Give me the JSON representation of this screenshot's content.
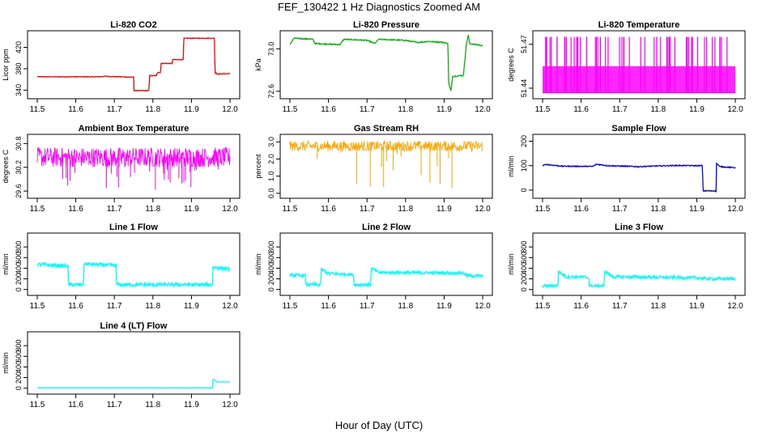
{
  "figure": {
    "title": "FEF_130422  1 Hz Diagnostics Zoomed AM",
    "xlabel": "Hour of Day (UTC)"
  },
  "chart_data": [
    {
      "type": "line",
      "title": "Li-820 CO2",
      "ylabel": "Licor ppm",
      "color": "#ff0000",
      "xlim": [
        11.5,
        12.0
      ],
      "ylim": [
        330,
        445
      ],
      "xticks": [
        11.5,
        11.6,
        11.7,
        11.8,
        11.9,
        12.0
      ],
      "yticks": [
        340,
        380,
        420
      ],
      "noise": 0.6,
      "points": [
        [
          11.5,
          365
        ],
        [
          11.66,
          365
        ],
        [
          11.675,
          366
        ],
        [
          11.75,
          364
        ],
        [
          11.751,
          339
        ],
        [
          11.79,
          339
        ],
        [
          11.791,
          367
        ],
        [
          11.81,
          367
        ],
        [
          11.811,
          373
        ],
        [
          11.82,
          373
        ],
        [
          11.821,
          390
        ],
        [
          11.85,
          390
        ],
        [
          11.851,
          397
        ],
        [
          11.879,
          397
        ],
        [
          11.88,
          437
        ],
        [
          11.96,
          437
        ],
        [
          11.961,
          372
        ],
        [
          11.964,
          374
        ],
        [
          11.965,
          370
        ],
        [
          12.0,
          371
        ]
      ]
    },
    {
      "type": "line",
      "title": "Li-820 Pressure",
      "ylabel": "kPa",
      "color": "#00b800",
      "xlim": [
        11.5,
        12.0
      ],
      "ylim": [
        72.56,
        73.14
      ],
      "xticks": [
        11.5,
        11.6,
        11.7,
        11.8,
        11.9,
        12.0
      ],
      "yticks": [
        72.6,
        73.0
      ],
      "yticklabels": [
        "72.6",
        "73.0"
      ],
      "noise": 0.005,
      "points": [
        [
          11.5,
          73.04
        ],
        [
          11.51,
          73.1
        ],
        [
          11.56,
          73.09
        ],
        [
          11.565,
          73.05
        ],
        [
          11.63,
          73.04
        ],
        [
          11.64,
          73.09
        ],
        [
          11.7,
          73.08
        ],
        [
          11.72,
          73.05
        ],
        [
          11.73,
          73.09
        ],
        [
          11.8,
          73.08
        ],
        [
          11.83,
          73.06
        ],
        [
          11.86,
          73.07
        ],
        [
          11.9,
          73.06
        ],
        [
          11.91,
          73.05
        ],
        [
          11.912,
          72.67
        ],
        [
          11.918,
          72.6
        ],
        [
          11.922,
          72.74
        ],
        [
          11.95,
          72.75
        ],
        [
          11.958,
          73.05
        ],
        [
          11.963,
          73.13
        ],
        [
          11.966,
          73.05
        ],
        [
          12.0,
          73.03
        ]
      ]
    },
    {
      "type": "step_noise",
      "title": "Li-820 Temperature",
      "ylabel": "degrees C",
      "color": "#ff00ff",
      "xlim": [
        11.5,
        12.0
      ],
      "ylim": [
        51.435,
        51.477
      ],
      "xticks": [
        11.5,
        11.6,
        11.7,
        11.8,
        11.9,
        12.0
      ],
      "yticks": [
        51.44,
        51.47
      ],
      "yticklabels": [
        "51.44",
        "51.47"
      ],
      "levels": [
        51.437,
        51.455,
        51.475
      ],
      "band": [
        51.437,
        51.455
      ],
      "spikes": 55
    },
    {
      "type": "noise",
      "title": "Ambient Box Temperature",
      "ylabel": "degrees C",
      "color": "#ff00ff",
      "xlim": [
        11.5,
        12.0
      ],
      "ylim": [
        29.5,
        30.95
      ],
      "xticks": [
        11.5,
        11.6,
        11.7,
        11.8,
        11.9,
        12.0
      ],
      "yticks": [
        29.6,
        30.2,
        30.8
      ],
      "yticklabels": [
        "29.6",
        "30.2",
        "30.8"
      ],
      "base": 30.45,
      "amp": 0.25,
      "spike_down": 29.6,
      "spikes": 45
    },
    {
      "type": "noise",
      "title": "Gas Stream RH",
      "ylabel": "percent",
      "color": "#ffa500",
      "xlim": [
        11.5,
        12.0
      ],
      "ylim": [
        -0.1,
        3.25
      ],
      "xticks": [
        11.5,
        11.6,
        11.7,
        11.8,
        11.9,
        12.0
      ],
      "yticks": [
        0.0,
        1.0,
        2.0,
        3.0
      ],
      "yticklabels": [
        "0.0",
        "1.0",
        "2.0",
        "3.0"
      ],
      "base": 2.75,
      "amp": 0.3,
      "spike_down": 0.1,
      "spikes": 18
    },
    {
      "type": "line",
      "title": "Sample Flow",
      "ylabel": "ml/min",
      "color": "#0000ff",
      "xlim": [
        11.5,
        12.0
      ],
      "ylim": [
        -20,
        215
      ],
      "xticks": [
        11.5,
        11.6,
        11.7,
        11.8,
        11.9,
        12.0
      ],
      "yticks": [
        0,
        100,
        200
      ],
      "noise": 2,
      "points": [
        [
          11.5,
          100
        ],
        [
          11.51,
          105
        ],
        [
          11.55,
          98
        ],
        [
          11.63,
          97
        ],
        [
          11.64,
          106
        ],
        [
          11.67,
          100
        ],
        [
          11.75,
          96
        ],
        [
          11.8,
          99
        ],
        [
          11.85,
          101
        ],
        [
          11.9,
          100
        ],
        [
          11.915,
          100
        ],
        [
          11.916,
          -3
        ],
        [
          11.95,
          -3
        ],
        [
          11.951,
          110
        ],
        [
          11.96,
          96
        ],
        [
          12.0,
          92
        ]
      ]
    },
    {
      "type": "line",
      "title": "Line 1 Flow",
      "ylabel": "ml/min",
      "color": "#00ffff",
      "xlim": [
        11.5,
        12.0
      ],
      "ylim": [
        -50,
        1000
      ],
      "xticks": [
        11.5,
        11.6,
        11.7,
        11.8,
        11.9,
        12.0
      ],
      "yticks": [
        0,
        200,
        400,
        600,
        800
      ],
      "noise": 35,
      "points": [
        [
          11.5,
          470
        ],
        [
          11.58,
          440
        ],
        [
          11.581,
          90
        ],
        [
          11.62,
          90
        ],
        [
          11.621,
          480
        ],
        [
          11.705,
          450
        ],
        [
          11.706,
          90
        ],
        [
          11.955,
          90
        ],
        [
          11.956,
          420
        ],
        [
          12.0,
          380
        ]
      ]
    },
    {
      "type": "line",
      "title": "Line 2 Flow",
      "ylabel": "ml/min",
      "color": "#00ffff",
      "xlim": [
        11.5,
        12.0
      ],
      "ylim": [
        -50,
        1000
      ],
      "xticks": [
        11.5,
        11.6,
        11.7,
        11.8,
        11.9,
        12.0
      ],
      "yticks": [
        0,
        200,
        400,
        600,
        800
      ],
      "noise": 30,
      "points": [
        [
          11.5,
          270
        ],
        [
          11.54,
          260
        ],
        [
          11.541,
          90
        ],
        [
          11.58,
          90
        ],
        [
          11.581,
          380
        ],
        [
          11.6,
          300
        ],
        [
          11.665,
          280
        ],
        [
          11.666,
          90
        ],
        [
          11.71,
          90
        ],
        [
          11.711,
          400
        ],
        [
          11.73,
          320
        ],
        [
          11.95,
          310
        ],
        [
          11.96,
          260
        ],
        [
          12.0,
          250
        ]
      ]
    },
    {
      "type": "line",
      "title": "Line 3 Flow",
      "ylabel": "ml/min",
      "color": "#00ffff",
      "xlim": [
        11.5,
        12.0
      ],
      "ylim": [
        -50,
        1000
      ],
      "xticks": [
        11.5,
        11.6,
        11.7,
        11.8,
        11.9,
        12.0
      ],
      "yticks": [
        0,
        200,
        400,
        600,
        800
      ],
      "noise": 28,
      "points": [
        [
          11.5,
          70
        ],
        [
          11.54,
          70
        ],
        [
          11.541,
          340
        ],
        [
          11.56,
          240
        ],
        [
          11.62,
          230
        ],
        [
          11.621,
          70
        ],
        [
          11.66,
          70
        ],
        [
          11.661,
          350
        ],
        [
          11.68,
          240
        ],
        [
          11.9,
          220
        ],
        [
          11.93,
          200
        ],
        [
          12.0,
          200
        ]
      ]
    },
    {
      "type": "line",
      "title": "Line 4 (LT) Flow",
      "ylabel": "ml/min",
      "color": "#00ffff",
      "xlim": [
        11.5,
        12.0
      ],
      "ylim": [
        -50,
        1000
      ],
      "xticks": [
        11.5,
        11.6,
        11.7,
        11.8,
        11.9,
        12.0
      ],
      "yticks": [
        0,
        200,
        400,
        600,
        800
      ],
      "noise": 3,
      "points": [
        [
          11.5,
          5
        ],
        [
          11.955,
          5
        ],
        [
          11.956,
          170
        ],
        [
          11.965,
          120
        ],
        [
          12.0,
          115
        ]
      ]
    }
  ]
}
